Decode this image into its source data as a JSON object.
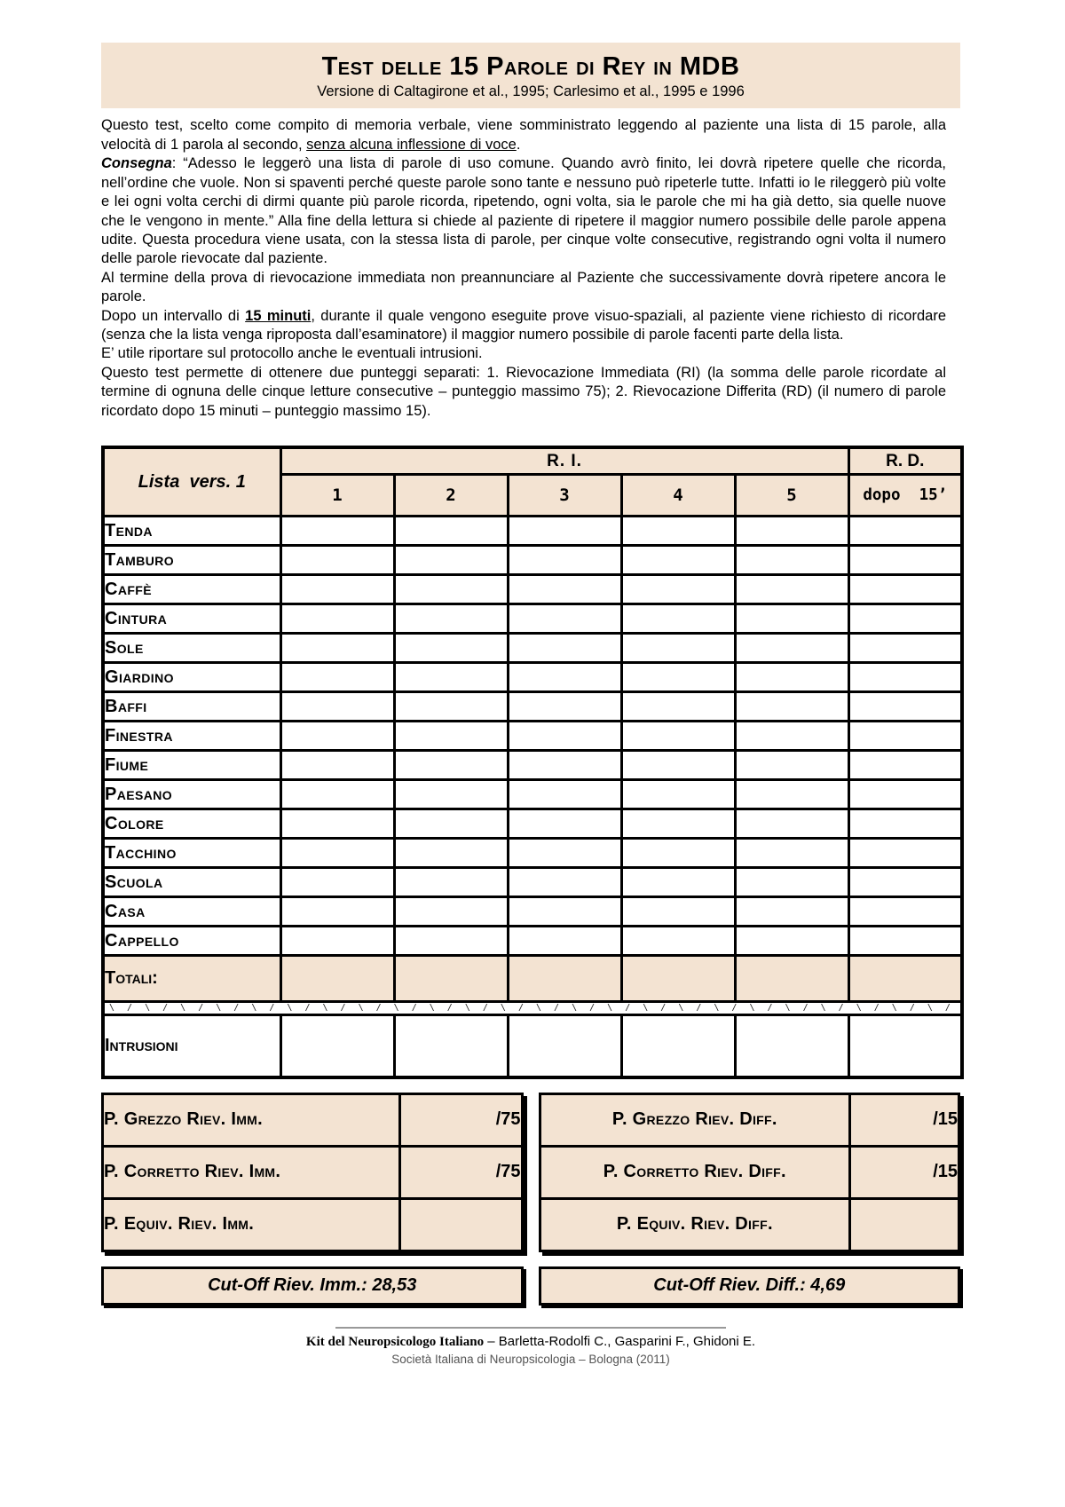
{
  "colors": {
    "beige": "#f3e3d2"
  },
  "header": {
    "title": "Test delle 15 Parole di Rey in MDB",
    "subtitle": "Versione di Caltagirone et al., 1995; Carlesimo et al., 1995 e 1996"
  },
  "intro": {
    "p1a": "Questo test, scelto come compito di memoria verbale, viene somministrato leggendo al paziente una lista di 15 parole, alla velocità di 1 parola al secondo, ",
    "p1u": "senza alcuna inflessione di voce",
    "p1end": ".",
    "p2label": "Consegna",
    "p2text": ": “Adesso le leggerò una lista di parole di uso comune. Quando avrò finito, lei dovrà ripetere quelle che ricorda, nell’ordine che vuole. Non si spaventi perché queste parole sono tante e nessuno può ripeterle tutte. Infatti io le rileggerò più volte e lei ogni volta cerchi di dirmi quante più parole ricorda, ripetendo, ogni volta, sia le parole che mi ha già detto, sia quelle nuove che le vengono in mente.” Alla fine della lettura si chiede al paziente di ripetere il maggior numero possibile delle parole appena udite. Questa procedura viene usata, con la stessa lista di parole, per cinque volte consecutive, registrando ogni volta il numero delle parole rievocate dal paziente.",
    "p3": "Al termine della prova di rievocazione immediata non preannunciare al Paziente che successivamente dovrà ripetere ancora le parole.",
    "p4a": "Dopo un intervallo di ",
    "p4u": "15 minuti",
    "p4b": ", durante il quale vengono eseguite prove visuo-spaziali, al paziente viene richiesto di ricordare (senza che la lista venga riproposta dall’esaminatore) il maggior numero possibile di parole facenti parte della lista.",
    "p5": "E’ utile riportare sul protocollo anche le eventuali intrusioni.",
    "p6": "Questo test permette di ottenere due punteggi separati: 1. Rievocazione Immediata (RI) (la somma delle parole ricordate al termine di ognuna delle cinque letture consecutive – punteggio massimo 75); 2. Rievocazione Differita (RD) (il numero di parole ricordato dopo 15 minuti – punteggio massimo 15)."
  },
  "table": {
    "list_label": "Lista  vers. 1",
    "ri_label": "R. I.",
    "rd_label": "R. D.",
    "trials": [
      "1",
      "2",
      "3",
      "4",
      "5"
    ],
    "delay_label": "dopo  15’",
    "words": [
      "Tenda",
      "Tamburo",
      "Caffè",
      "Cintura",
      "Sole",
      "Giardino",
      "Baffi",
      "Finestra",
      "Fiume",
      "Paesano",
      "Colore",
      "Tacchino",
      "Scuola",
      "Casa",
      "Cappello"
    ],
    "totals_label": "Totali:",
    "intrusions_label": "Intrusioni",
    "tear_unit": "\\ / "
  },
  "scores": {
    "immediate": {
      "rows": [
        {
          "label": "P. Grezzo Riev. Imm.",
          "value": "/75"
        },
        {
          "label": "P. Corretto Riev. Imm.",
          "value": "/75"
        },
        {
          "label": "P. Equiv. Riev. Imm.",
          "value": ""
        }
      ]
    },
    "delayed": {
      "rows": [
        {
          "label": "P. Grezzo Riev. Diff.",
          "value": "/15"
        },
        {
          "label": "P. Corretto Riev. Diff.",
          "value": "/15"
        },
        {
          "label": "P. Equiv. Riev. Diff.",
          "value": ""
        }
      ]
    }
  },
  "cutoff": {
    "imm": "Cut-Off Riev. Imm.: 28,53",
    "diff": "Cut-Off Riev. Diff.: 4,69"
  },
  "footer": {
    "kit": "Kit del Neuropsicologo Italiano",
    "authors": "– Barletta-Rodolfi C., Gasparini F., Ghidoni E.",
    "line2": "Società Italiana di Neuropsicologia – Bologna (2011)"
  }
}
